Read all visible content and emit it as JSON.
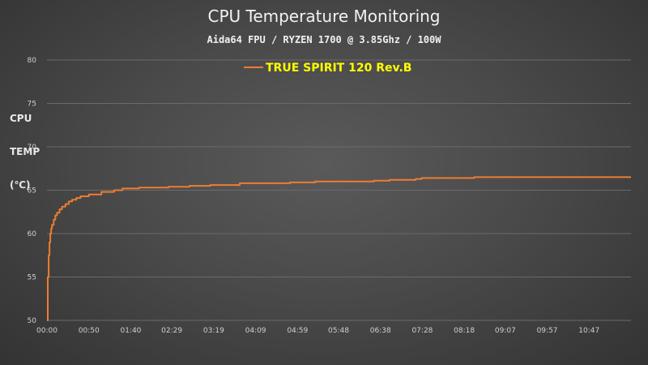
{
  "chart_data": {
    "type": "line",
    "title": "CPU Temperature Monitoring",
    "subtitle": "Aida64 FPU / RYZEN 1700 @ 3.85Ghz / 100W",
    "ylabel": "CPU\n\nTEMP\n\n(℃)",
    "xlabel": "",
    "ylim": [
      50,
      80
    ],
    "yticks": [
      50,
      55,
      60,
      65,
      70,
      75,
      80
    ],
    "xlim": [
      "00:00",
      "11:37"
    ],
    "xticks": [
      "00:00",
      "00:50",
      "01:40",
      "02:29",
      "03:19",
      "04:09",
      "04:59",
      "05:48",
      "06:38",
      "07:28",
      "08:18",
      "09:07",
      "09:57",
      "10:47"
    ],
    "grid": "horizontal",
    "legend_position": "top",
    "colors": {
      "series": "#ed7d31",
      "legend_text": "#ffff00"
    },
    "series": [
      {
        "name": "TRUE SPIRIT 120 Rev.B",
        "x": [
          "00:00",
          "00:01",
          "00:02",
          "00:03",
          "00:04",
          "00:05",
          "00:06",
          "00:08",
          "00:10",
          "00:12",
          "00:15",
          "00:18",
          "00:22",
          "00:26",
          "00:30",
          "00:35",
          "00:40",
          "00:50",
          "01:05",
          "01:20",
          "01:30",
          "01:50",
          "02:25",
          "02:50",
          "03:15",
          "03:50",
          "04:50",
          "05:20",
          "06:30",
          "06:49",
          "07:20",
          "07:27",
          "08:30",
          "09:30",
          "10:30",
          "11:37"
        ],
        "values": [
          50.0,
          55.0,
          57.5,
          59.0,
          60.0,
          60.6,
          61.0,
          61.6,
          62.1,
          62.4,
          62.8,
          63.1,
          63.4,
          63.7,
          63.9,
          64.1,
          64.3,
          64.5,
          64.8,
          65.0,
          65.2,
          65.3,
          65.4,
          65.5,
          65.6,
          65.8,
          65.9,
          66.0,
          66.1,
          66.2,
          66.3,
          66.4,
          66.5,
          66.5,
          66.5,
          66.5
        ]
      }
    ]
  }
}
